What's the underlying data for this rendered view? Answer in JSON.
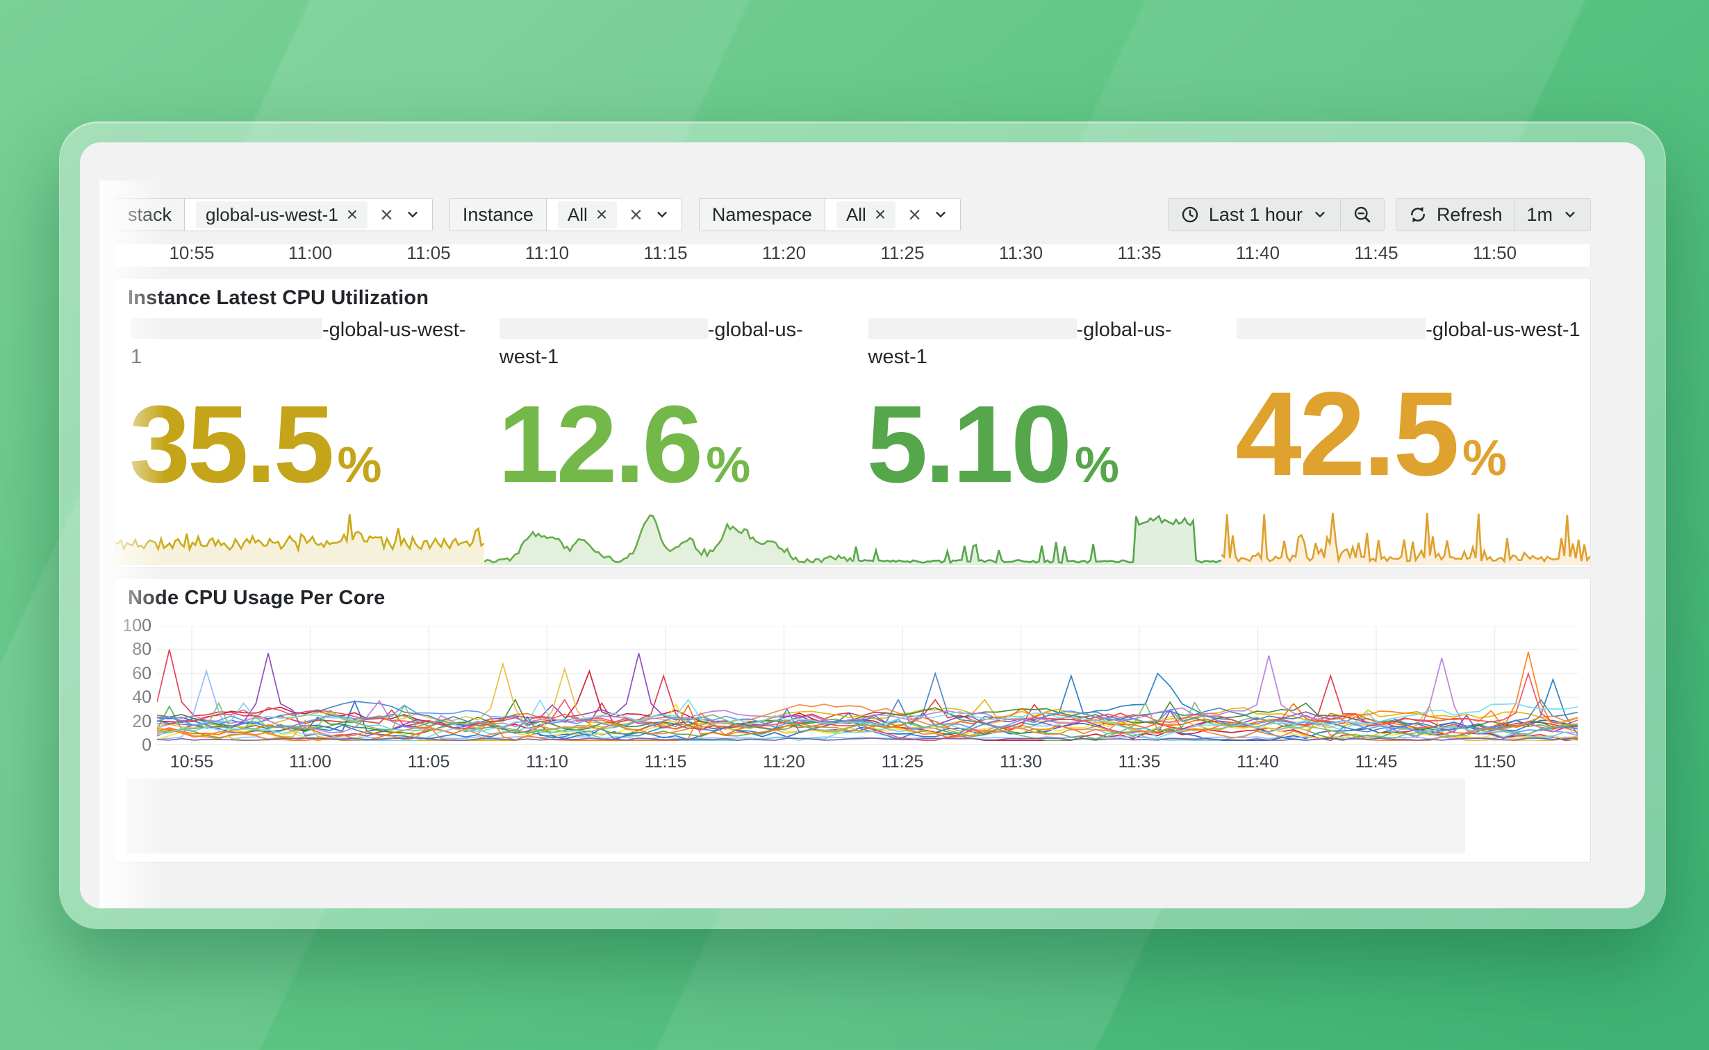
{
  "filters": {
    "groups": [
      {
        "label": "stack",
        "chip": "global-us-west-1"
      },
      {
        "label": "Instance",
        "chip": "All"
      },
      {
        "label": "Namespace",
        "chip": "All"
      }
    ],
    "chip_remove_glyph": "×",
    "clear_glyph": "×"
  },
  "timebar": {
    "range_label": "Last 1 hour",
    "refresh_label": "Refresh",
    "interval_label": "1m"
  },
  "top_axis": {
    "ticks": [
      "10:55",
      "11:00",
      "11:05",
      "11:10",
      "11:15",
      "11:20",
      "11:25",
      "11:30",
      "11:35",
      "11:40",
      "11:45",
      "11:50"
    ]
  },
  "stats_panel": {
    "title": "Instance Latest CPU Utilization",
    "stats": [
      {
        "label_line1_suffix": "-global-us-west-",
        "label_line2": "1",
        "redact_width": 276,
        "value": "35.5",
        "unit": "%",
        "color": "#c4a519",
        "spark": {
          "kind": "noisy",
          "seed": 11,
          "line": "#c9ab19",
          "fill": "rgba(201,171,25,0.16)"
        }
      },
      {
        "label_line1_suffix": "-global-us-",
        "label_line2": "west-1",
        "redact_width": 300,
        "value": "12.6",
        "unit": "%",
        "color": "#73b849",
        "spark": {
          "kind": "bumps",
          "seed": 22,
          "line": "#67ad4a",
          "fill": "rgba(103,173,74,0.18)",
          "bumps": [
            [
              0.13,
              0.45
            ],
            [
              0.19,
              0.38
            ],
            [
              0.27,
              0.36
            ],
            [
              0.45,
              0.8
            ],
            [
              0.55,
              0.38
            ],
            [
              0.66,
              0.5
            ],
            [
              0.71,
              0.42
            ],
            [
              0.78,
              0.3
            ]
          ]
        }
      },
      {
        "label_line1_suffix": "-global-us-",
        "label_line2": "west-1",
        "redact_width": 300,
        "value": "5.10",
        "unit": "%",
        "color": "#56a64b",
        "spark": {
          "kind": "plateau",
          "seed": 33,
          "line": "#56a64b",
          "fill": "rgba(86,166,75,0.18)",
          "plateau": [
            0.765,
            0.925,
            0.8
          ]
        }
      },
      {
        "label_line1_suffix": "-global-us-west-1",
        "label_line2": "",
        "redact_width": 272,
        "value": "42.5",
        "unit": "%",
        "color": "#e0a22e",
        "spark": {
          "kind": "spiky",
          "seed": 44,
          "line": "#dfa02c",
          "fill": "rgba(223,160,44,0.16)",
          "tall": [
            0.015,
            0.115,
            0.3,
            0.56,
            0.695,
            0.94
          ]
        }
      }
    ]
  },
  "node_panel": {
    "title": "Node CPU Usage Per Core",
    "chart_data": {
      "type": "line",
      "ylabel": "",
      "ylim": [
        0,
        100
      ],
      "y_ticks": [
        100,
        80,
        60,
        40,
        20,
        0
      ],
      "x_ticks": [
        "10:55",
        "11:00",
        "11:05",
        "11:10",
        "11:15",
        "11:20",
        "11:25",
        "11:30",
        "11:35",
        "11:40",
        "11:45",
        "11:50"
      ],
      "grid": true,
      "series_colors": [
        "#E02F44",
        "#C4162A",
        "#1F60C4",
        "#8AB8FF",
        "#FADE2A",
        "#1F78C1",
        "#56A64B",
        "#8F3BB8",
        "#E0B400",
        "#37872D",
        "#EAB839",
        "#FA6400",
        "#447EBC",
        "#B877D9",
        "#6ED0E0",
        "#EF843C",
        "#FF780A",
        "#F2495C",
        "#5794F2",
        "#73BF69",
        "#70DBED",
        "#705DA0"
      ],
      "typical_range": [
        4,
        38
      ],
      "flat": [
        {
          "s": 21,
          "v": 5
        },
        {
          "s": 3,
          "v": 6
        }
      ],
      "elevated": [
        {
          "s": 5,
          "from": 0.56,
          "to": 0.78,
          "add": 14
        },
        {
          "s": 18,
          "from": 0.6,
          "to": 0.76,
          "add": 10
        },
        {
          "s": 13,
          "from": 0.62,
          "to": 0.74,
          "add": 8
        }
      ],
      "spikes": [
        {
          "s": 0,
          "x": 0.012,
          "v": 80
        },
        {
          "s": 7,
          "x": 0.075,
          "v": 77
        },
        {
          "s": 3,
          "x": 0.035,
          "v": 62
        },
        {
          "s": 10,
          "x": 0.245,
          "v": 68
        },
        {
          "s": 10,
          "x": 0.29,
          "v": 64
        },
        {
          "s": 1,
          "x": 0.3,
          "v": 62
        },
        {
          "s": 7,
          "x": 0.335,
          "v": 77
        },
        {
          "s": 0,
          "x": 0.36,
          "v": 58
        },
        {
          "s": 12,
          "x": 0.55,
          "v": 60
        },
        {
          "s": 5,
          "x": 0.64,
          "v": 58
        },
        {
          "s": 5,
          "x": 0.7,
          "v": 60
        },
        {
          "s": 13,
          "x": 0.78,
          "v": 75
        },
        {
          "s": 0,
          "x": 0.83,
          "v": 58
        },
        {
          "s": 13,
          "x": 0.905,
          "v": 73
        },
        {
          "s": 16,
          "x": 0.965,
          "v": 78
        },
        {
          "s": 17,
          "x": 0.965,
          "v": 60
        },
        {
          "s": 5,
          "x": 0.985,
          "v": 55
        }
      ]
    }
  }
}
